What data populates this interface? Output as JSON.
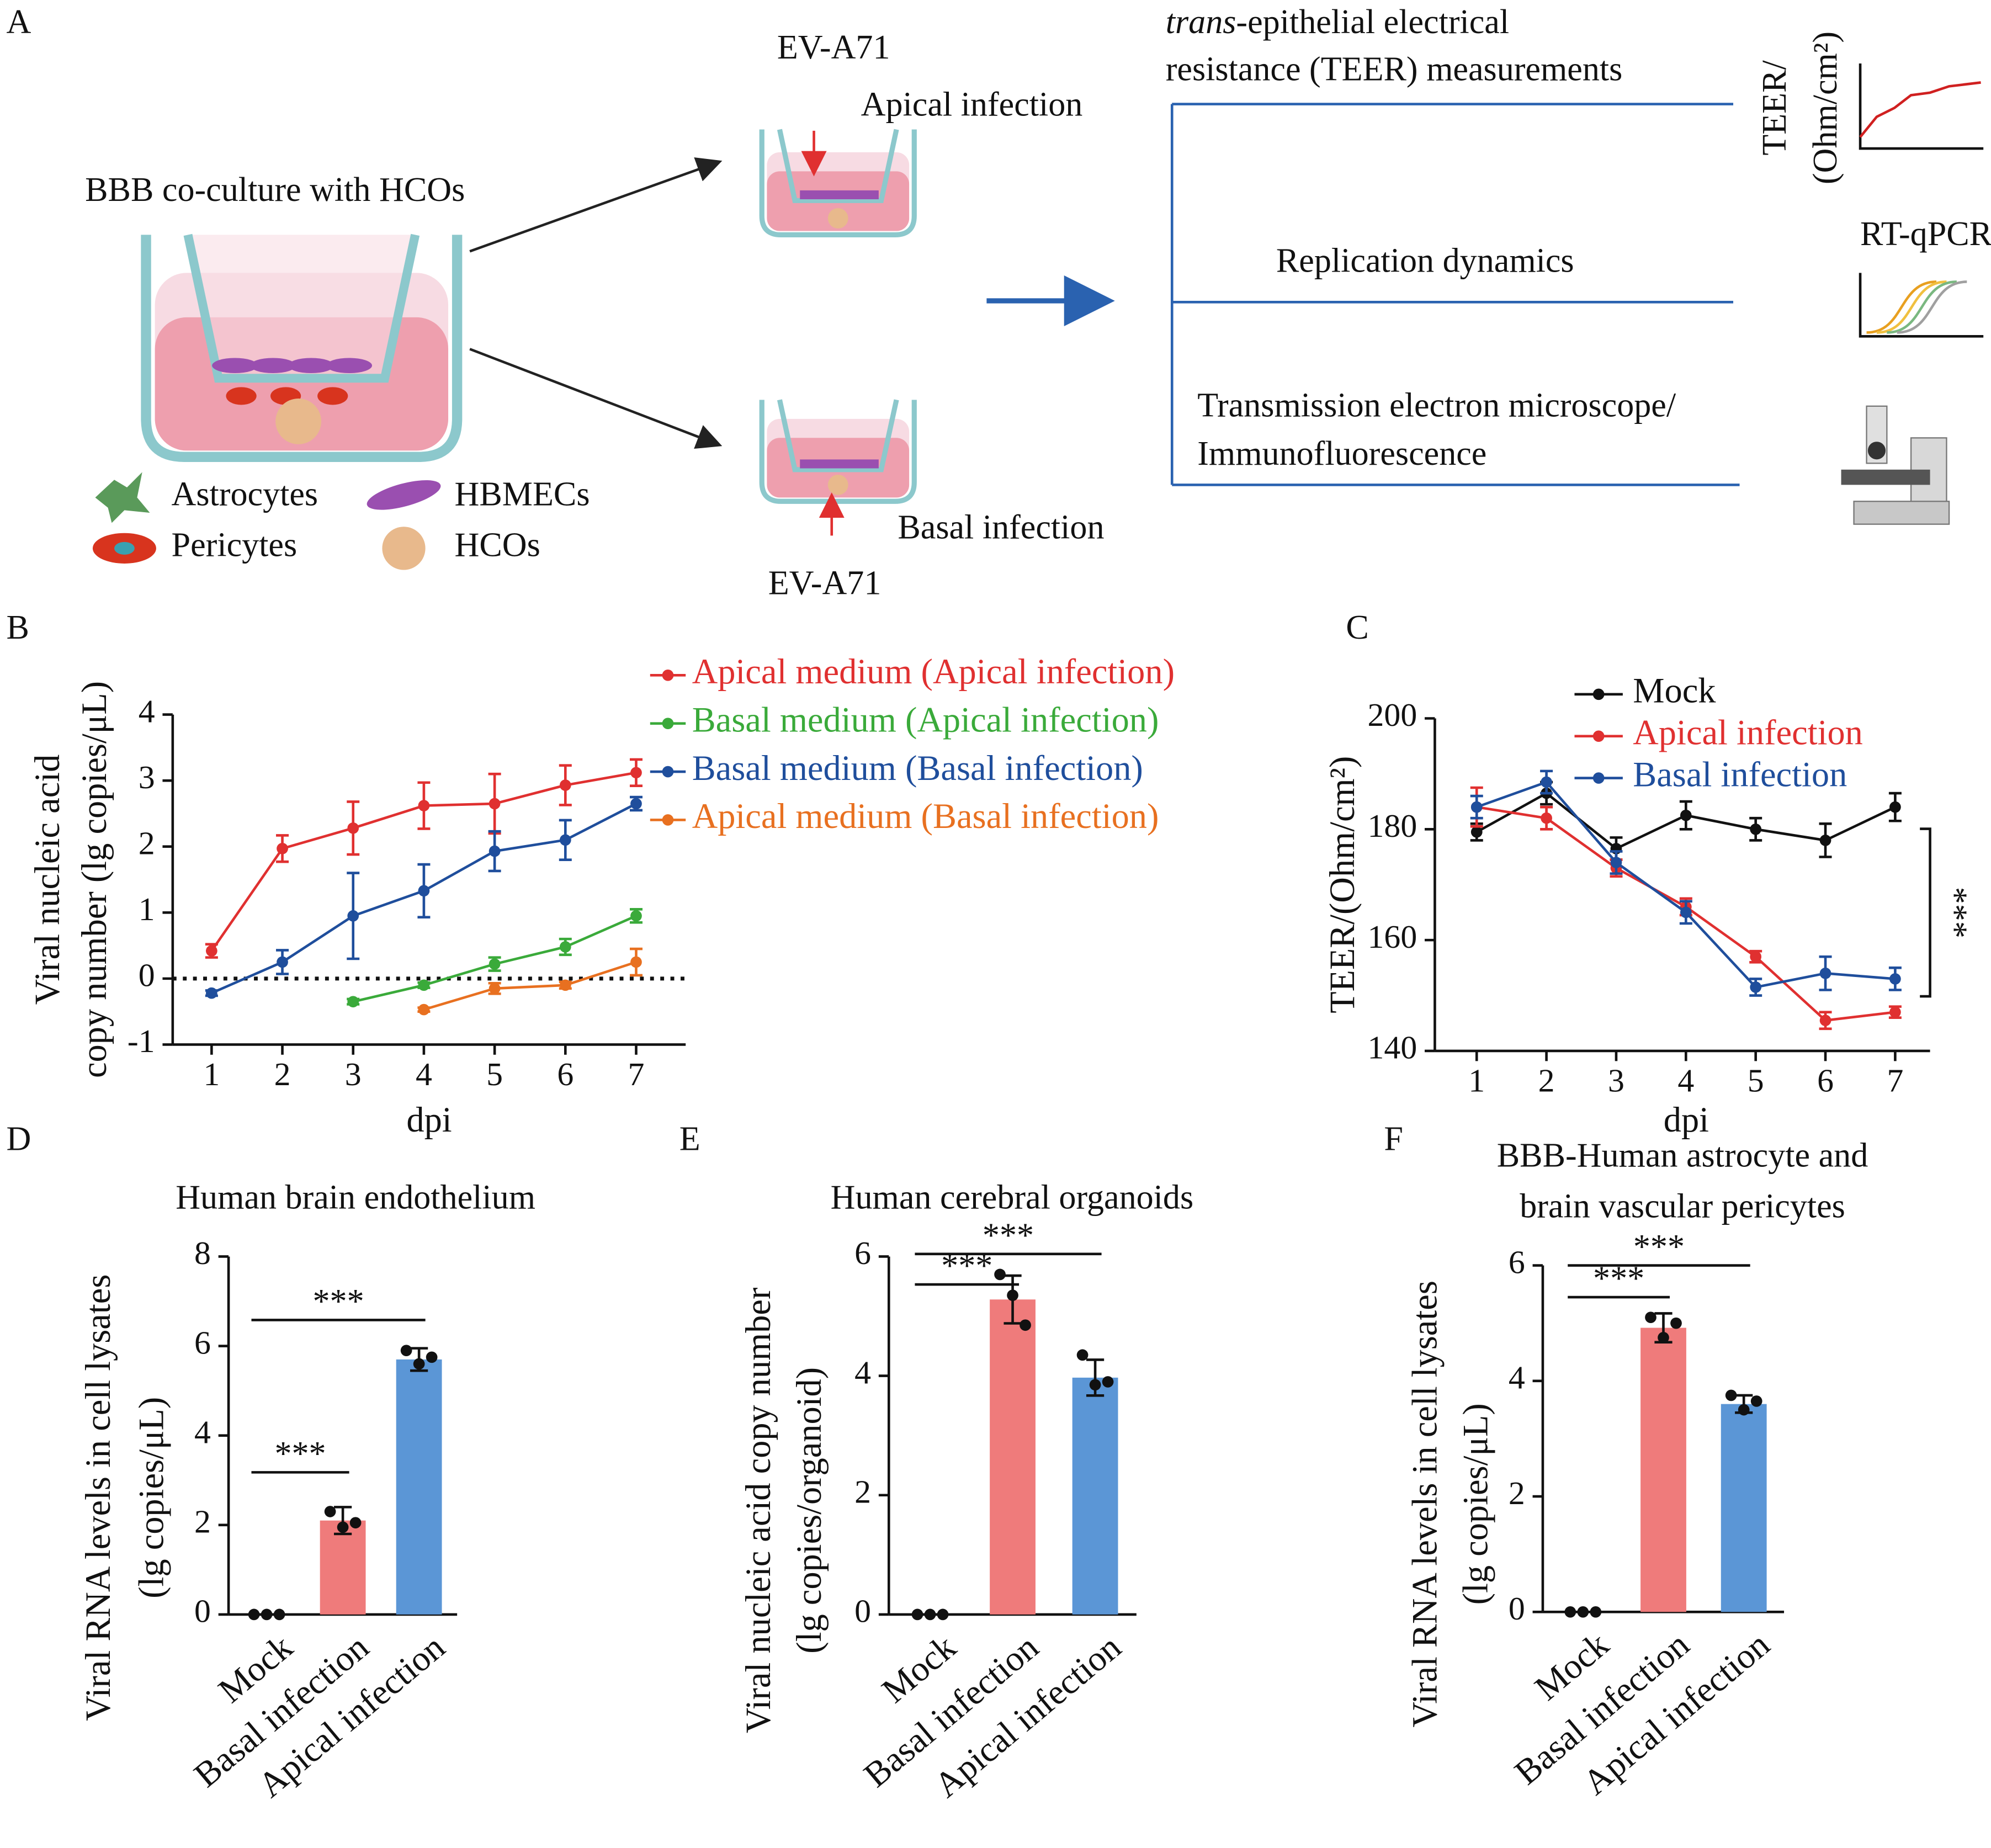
{
  "diagram": {
    "panel": "A",
    "coculture_title": "BBB co-culture with HCOs",
    "cells": [
      "Astrocytes",
      "HBMECs",
      "Pericytes",
      "HCOs"
    ],
    "virus": [
      "EV-A71",
      "EV-A71"
    ],
    "routes": [
      "Apical infection",
      "Basal infection"
    ],
    "teer_title": [
      "trans",
      "-epithelial electrical",
      "resistance (TEER) measurements"
    ],
    "replication": "Replication dynamics",
    "imaging": [
      "Transmission electron microscope/",
      "Immunofluorescence"
    ],
    "teer_icon": [
      "TEER/",
      "(Ohm/cm²)"
    ],
    "qpcr_icon": "RT-qPCR"
  },
  "chart_data": [
    {
      "type": "line",
      "panel": "B",
      "xlabel": "dpi",
      "ylabel": [
        "Viral nucleic acid",
        "copy number (lg copies/μL)"
      ],
      "xlim": [
        0.45,
        7.7
      ],
      "ylim": [
        -1,
        4
      ],
      "xticks": [
        1,
        2,
        3,
        4,
        5,
        6,
        7
      ],
      "yticks": [
        -1,
        0,
        1,
        2,
        3,
        4
      ],
      "zero_line": true,
      "series": [
        {
          "name": "Apical medium (Apical infection)",
          "color": "#e03030",
          "x": [
            1,
            2,
            3,
            4,
            5,
            6,
            7
          ],
          "values": [
            0.42,
            1.97,
            2.28,
            2.62,
            2.65,
            2.93,
            3.12
          ],
          "errors": [
            0.1,
            0.2,
            0.4,
            0.35,
            0.45,
            0.3,
            0.2
          ]
        },
        {
          "name": "Basal medium (Apical infection)",
          "color": "#3aaa3a",
          "x": [
            3,
            4,
            5,
            6,
            7
          ],
          "values": [
            -0.35,
            -0.1,
            0.22,
            0.48,
            0.95
          ],
          "errors": [
            0.04,
            0.04,
            0.1,
            0.12,
            0.1
          ]
        },
        {
          "name": "Basal medium (Basal infection)",
          "color": "#1f4e9c",
          "x": [
            1,
            2,
            3,
            4,
            5,
            6,
            7
          ],
          "values": [
            -0.22,
            0.25,
            0.95,
            1.33,
            1.93,
            2.1,
            2.65
          ],
          "errors": [
            0.04,
            0.18,
            0.65,
            0.4,
            0.3,
            0.3,
            0.1
          ]
        },
        {
          "name": "Apical medium (Basal infection)",
          "color": "#e87020",
          "x": [
            4,
            5,
            6,
            7
          ],
          "values": [
            -0.47,
            -0.15,
            -0.1,
            0.25
          ],
          "errors": [
            0.03,
            0.08,
            0.05,
            0.2
          ]
        }
      ]
    },
    {
      "type": "line",
      "panel": "C",
      "xlabel": "dpi",
      "ylabel": [
        "TEER/(Ohm/cm²)"
      ],
      "xlim": [
        0.4,
        7.5
      ],
      "ylim": [
        140,
        200
      ],
      "xticks": [
        1,
        2,
        3,
        4,
        5,
        6,
        7
      ],
      "yticks": [
        140,
        160,
        180,
        200
      ],
      "annotation": "***",
      "series": [
        {
          "name": "Mock",
          "color": "#111111",
          "x": [
            1,
            2,
            3,
            4,
            5,
            6,
            7
          ],
          "values": [
            179.5,
            186.5,
            176.5,
            182.5,
            180,
            178,
            184
          ],
          "errors": [
            1.5,
            2,
            2,
            2.5,
            2,
            3,
            2.5
          ]
        },
        {
          "name": "Apical infection",
          "color": "#e03030",
          "x": [
            1,
            2,
            3,
            4,
            5,
            6,
            7
          ],
          "values": [
            184,
            182,
            173,
            166,
            157,
            145.5,
            147
          ],
          "errors": [
            3.5,
            2,
            1.5,
            1.5,
            1,
            1.5,
            1
          ]
        },
        {
          "name": "Basal infection",
          "color": "#1f4e9c",
          "x": [
            1,
            2,
            3,
            4,
            5,
            6,
            7
          ],
          "values": [
            184,
            188.5,
            174,
            165,
            151.5,
            154,
            153
          ],
          "errors": [
            2,
            2,
            2,
            2,
            1.5,
            3,
            2
          ]
        }
      ]
    },
    {
      "type": "bar",
      "panel": "D",
      "title": [
        "Human brain endothelium"
      ],
      "ylabel": [
        "Viral RNA levels in cell lysates",
        "(lg copies/μL)"
      ],
      "ylim": [
        0,
        8
      ],
      "yticks": [
        0,
        2,
        4,
        6,
        8
      ],
      "categories": [
        "Mock",
        "Basal infection",
        "Apical infection"
      ],
      "colors": [
        "#ef7b7b",
        "#ef7b7b",
        "#5b96d6"
      ],
      "values": [
        0,
        2.1,
        5.7
      ],
      "errors": [
        0,
        0.3,
        0.25
      ],
      "points": [
        [
          0,
          0,
          0
        ],
        [
          2.3,
          1.95,
          2.05
        ],
        [
          5.9,
          5.6,
          5.75
        ]
      ],
      "annotations": [
        "***",
        "***"
      ]
    },
    {
      "type": "bar",
      "panel": "E",
      "title": [
        "Human cerebral organoids"
      ],
      "ylabel": [
        "Viral nucleic acid copy number",
        "(lg copies/organoid)"
      ],
      "ylim": [
        0,
        6
      ],
      "yticks": [
        0,
        2,
        4,
        6
      ],
      "categories": [
        "Mock",
        "Basal infection",
        "Apical infection"
      ],
      "colors": [
        "#ef7b7b",
        "#ef7b7b",
        "#5b96d6"
      ],
      "values": [
        0,
        5.28,
        3.97
      ],
      "errors": [
        0,
        0.4,
        0.3
      ],
      "points": [
        [
          0,
          0,
          0
        ],
        [
          5.7,
          5.35,
          4.85
        ],
        [
          4.35,
          3.85,
          3.9
        ]
      ],
      "annotations": [
        "***",
        "***"
      ]
    },
    {
      "type": "bar",
      "panel": "F",
      "title": [
        "BBB-Human astrocyte and",
        "brain vascular pericytes"
      ],
      "ylabel": [
        "Viral RNA levels in cell lysates",
        "(lg copies/μL)"
      ],
      "ylim": [
        0,
        6
      ],
      "yticks": [
        0,
        2,
        4,
        6
      ],
      "categories": [
        "Mock",
        "Basal infection",
        "Apical infection"
      ],
      "colors": [
        "#ef7b7b",
        "#ef7b7b",
        "#5b96d6"
      ],
      "values": [
        0,
        4.92,
        3.6
      ],
      "errors": [
        0,
        0.25,
        0.15
      ],
      "points": [
        [
          0,
          0,
          0
        ],
        [
          5.1,
          4.75,
          5.0
        ],
        [
          3.75,
          3.5,
          3.65
        ]
      ],
      "annotations": [
        "***",
        "***"
      ]
    }
  ]
}
